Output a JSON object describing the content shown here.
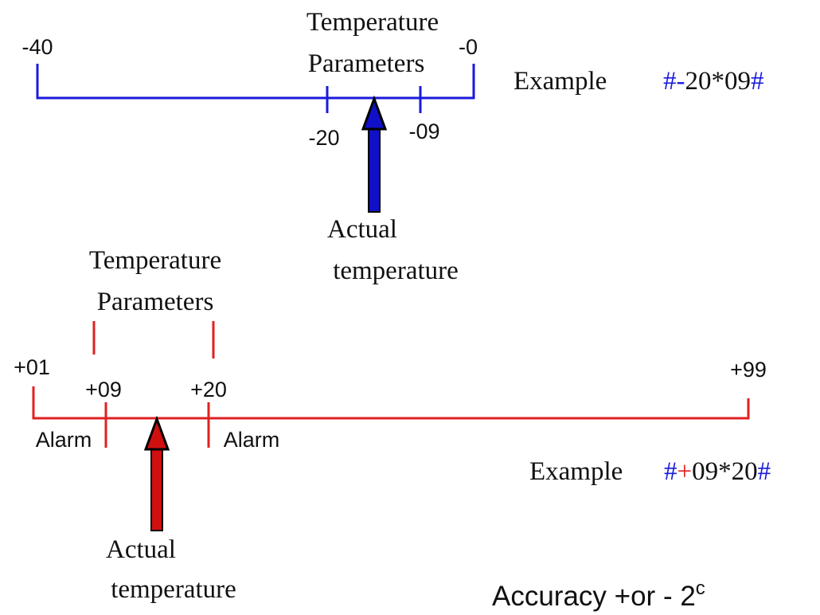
{
  "top": {
    "range_start": "-40",
    "range_end": "-0",
    "param_title": [
      "Temperature",
      "Parameters"
    ],
    "low": "-20",
    "high": "-09",
    "actual": [
      "Actual",
      "temperature"
    ],
    "example": {
      "label": "Example",
      "parts": [
        "#-",
        "20*09",
        "#"
      ]
    }
  },
  "bottom": {
    "range_start": "+01",
    "range_end": "+99",
    "param_title": [
      "Temperature",
      "Parameters"
    ],
    "low": "+09",
    "high": "+20",
    "alarm_low": "Alarm",
    "alarm_high": "Alarm",
    "actual": [
      "Actual",
      "temperature"
    ],
    "example": {
      "label": "Example",
      "parts": [
        "#",
        "+",
        "09*20",
        "#"
      ]
    }
  },
  "accuracy": {
    "text": "Accuracy +or - 2",
    "unit": "c"
  }
}
